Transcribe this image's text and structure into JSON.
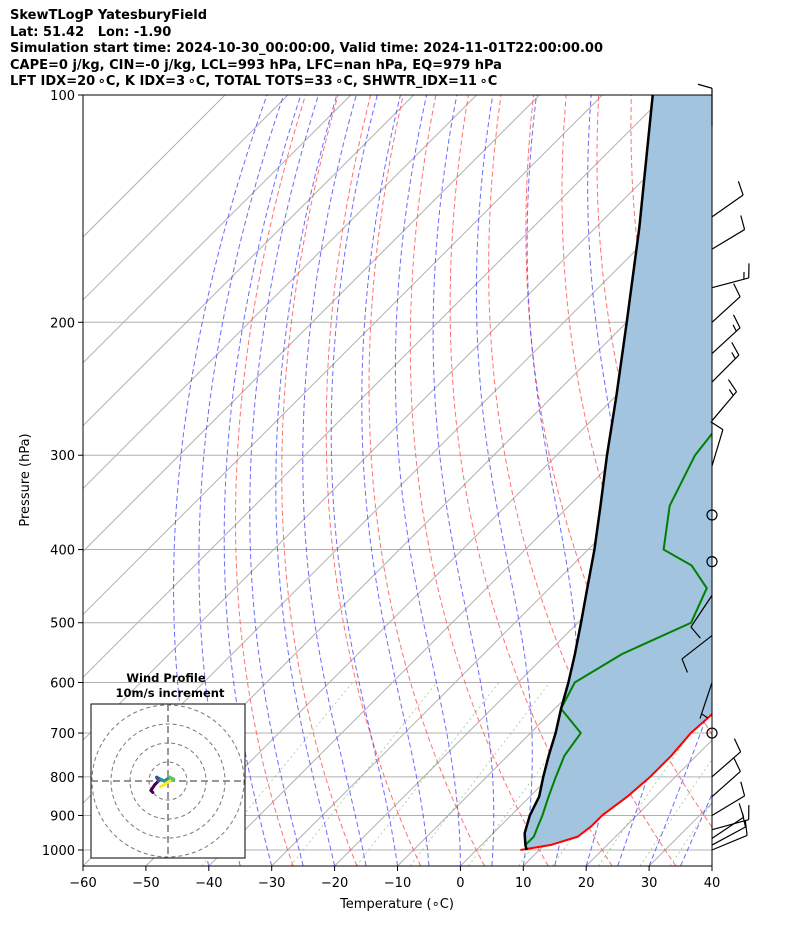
{
  "header": {
    "line1": "SkewTLogP YatesburyField",
    "line2": "Lat: 51.42   Lon: -1.90",
    "line3": "Simulation start time: 2024-10-30_00:00:00, Valid time: 2024-11-01T22:00:00.00",
    "line4": "CAPE=0 j/kg, CIN=-0 j/kg, LCL=993 hPa, LFC=nan hPa, EQ=979 hPa",
    "line5": "LFT IDX=20 ∘C, K IDX=3 ∘C, TOTAL TOTS=33 ∘C, SHWTR_IDX=11 ∘C"
  },
  "chart_data": {
    "type": "line",
    "subtype": "skew-t log-p",
    "xlabel": "Temperature (∘C)",
    "ylabel": "Pressure (hPa)",
    "xlim": [
      -60,
      40
    ],
    "ylim": [
      1050,
      100
    ],
    "yscale": "log",
    "x_ticks": [
      -60,
      -50,
      -40,
      -30,
      -20,
      -10,
      0,
      10,
      20,
      30,
      40
    ],
    "x_tick_labels": [
      "−60",
      "−50",
      "−40",
      "−30",
      "−20",
      "−10",
      "0",
      "10",
      "20",
      "30",
      "40"
    ],
    "y_ticks": [
      1000,
      900,
      800,
      700,
      600,
      500,
      400,
      300,
      200,
      100
    ],
    "grid": true,
    "series": [
      {
        "color": "#ff0000",
        "points": [
          [
            1000,
            7
          ],
          [
            985,
            11
          ],
          [
            960,
            14
          ],
          [
            930,
            14.5
          ],
          [
            900,
            14.5
          ],
          [
            850,
            15.5
          ],
          [
            800,
            16
          ],
          [
            750,
            16
          ],
          [
            700,
            15.5
          ],
          [
            650,
            16
          ],
          [
            600,
            15
          ],
          [
            550,
            12
          ],
          [
            500,
            9
          ],
          [
            450,
            7
          ],
          [
            400,
            5
          ],
          [
            350,
            2
          ],
          [
            300,
            -3
          ],
          [
            250,
            -7
          ],
          [
            220,
            -10
          ],
          [
            200,
            -13
          ],
          [
            185,
            -17
          ],
          [
            170,
            -21
          ],
          [
            160,
            -22
          ],
          [
            150,
            -18
          ],
          [
            140,
            -15
          ],
          [
            130,
            -14
          ],
          [
            120,
            -11
          ],
          [
            110,
            -6
          ],
          [
            100,
            -4
          ]
        ]
      },
      {
        "color": "#008000",
        "points": [
          [
            985,
            7
          ],
          [
            960,
            7
          ],
          [
            930,
            6
          ],
          [
            900,
            5
          ],
          [
            850,
            3
          ],
          [
            800,
            1
          ],
          [
            750,
            -1
          ],
          [
            700,
            -2
          ],
          [
            650,
            -9
          ],
          [
            600,
            -11
          ],
          [
            550,
            -8
          ],
          [
            500,
            -2
          ],
          [
            450,
            -5
          ],
          [
            420,
            -11
          ],
          [
            400,
            -18
          ],
          [
            350,
            -24
          ],
          [
            300,
            -28
          ],
          [
            250,
            -30
          ],
          [
            220,
            -30
          ],
          [
            200,
            -34
          ],
          [
            180,
            -36
          ],
          [
            170,
            -37
          ],
          [
            160,
            -38
          ],
          [
            150,
            -40
          ],
          [
            140,
            -41
          ],
          [
            130,
            -42
          ],
          [
            120,
            -43
          ],
          [
            110,
            -42
          ],
          [
            100,
            -44
          ]
        ]
      },
      {
        "color": "#000000",
        "points": [
          [
            1000,
            8
          ],
          [
            985,
            7
          ],
          [
            950,
            5
          ],
          [
            900,
            3
          ],
          [
            850,
            1.5
          ],
          [
            800,
            -1
          ],
          [
            750,
            -3.5
          ],
          [
            700,
            -6
          ],
          [
            650,
            -9
          ],
          [
            600,
            -12
          ],
          [
            550,
            -15.5
          ],
          [
            500,
            -19.5
          ],
          [
            450,
            -24
          ],
          [
            400,
            -29
          ],
          [
            350,
            -35
          ],
          [
            300,
            -42
          ],
          [
            250,
            -50
          ],
          [
            200,
            -60
          ],
          [
            150,
            -73
          ],
          [
            100,
            -92
          ]
        ]
      }
    ],
    "cape_shading_color": "#a2c4df",
    "wind_barbs": [
      {
        "p": 1000,
        "u": 12,
        "v": 5
      },
      {
        "p": 985,
        "u": 13,
        "v": 7
      },
      {
        "p": 965,
        "u": 12,
        "v": 8
      },
      {
        "p": 940,
        "u": 11,
        "v": 3
      },
      {
        "p": 900,
        "u": 10,
        "v": 6
      },
      {
        "p": 850,
        "u": 9,
        "v": 8
      },
      {
        "p": 800,
        "u": 8,
        "v": 7
      },
      {
        "p": 700,
        "u": 0,
        "v": 0
      },
      {
        "p": 600,
        "u": -3,
        "v": -9
      },
      {
        "p": 520,
        "u": -9,
        "v": -7
      },
      {
        "p": 460,
        "u": -6,
        "v": -9
      },
      {
        "p": 415,
        "u": 0,
        "v": 0
      },
      {
        "p": 360,
        "u": 0,
        "v": 0
      },
      {
        "p": 310,
        "u": 3,
        "v": 10
      },
      {
        "p": 270,
        "u": 11,
        "v": 13
      },
      {
        "p": 240,
        "u": 12,
        "v": 12
      },
      {
        "p": 220,
        "u": 12,
        "v": 11
      },
      {
        "p": 200,
        "u": 11,
        "v": 10
      },
      {
        "p": 180,
        "u": 15,
        "v": 4
      },
      {
        "p": 160,
        "u": 10,
        "v": 6
      },
      {
        "p": 145,
        "u": 10,
        "v": 7
      },
      {
        "p": 110,
        "u": 0,
        "v": 10
      }
    ],
    "hodograph": {
      "title_line1": "Wind Profile",
      "title_line2": "10m/s increment",
      "rings_ms": [
        10,
        20,
        30,
        40
      ],
      "trace": [
        [
          -8,
          -6
        ],
        [
          -9,
          -5
        ],
        [
          -7,
          -2
        ],
        [
          -5,
          0
        ],
        [
          -6,
          2
        ],
        [
          -4,
          1
        ],
        [
          -2,
          0
        ],
        [
          1,
          2
        ],
        [
          3,
          1
        ],
        [
          1,
          0
        ],
        [
          -2,
          -2
        ],
        [
          -4,
          -3
        ]
      ]
    }
  }
}
